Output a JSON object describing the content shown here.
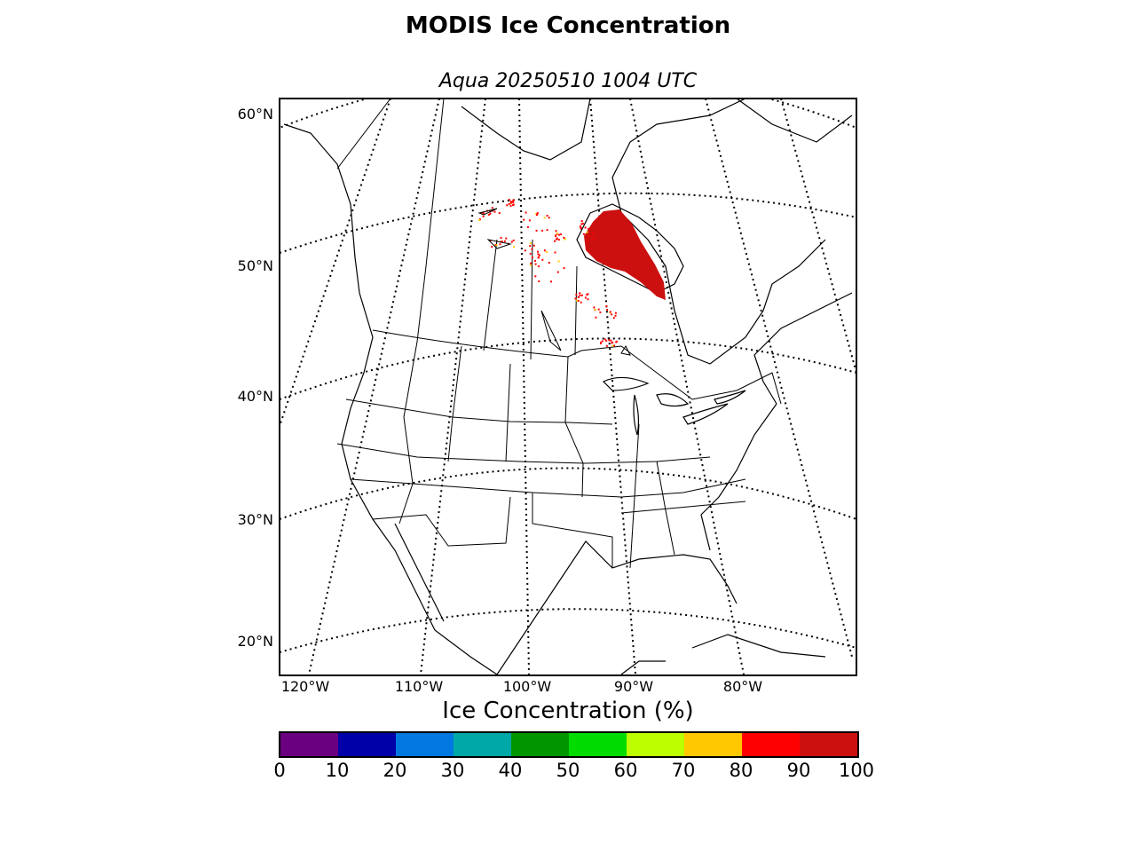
{
  "title": "MODIS Ice Concentration",
  "subtitle": "Aqua 20250510 1004 UTC",
  "lat_labels": [
    "60°N",
    "50°N",
    "40°N",
    "30°N",
    "20°N"
  ],
  "lon_labels": [
    "120°W",
    "110°W",
    "100°W",
    "90°W",
    "80°W"
  ],
  "colorbar": {
    "label": "Ice Concentration (%)",
    "ticks": [
      "0",
      "10",
      "20",
      "30",
      "40",
      "50",
      "60",
      "70",
      "80",
      "90",
      "100"
    ],
    "colors": [
      "#6a007f",
      "#0000a8",
      "#0078e0",
      "#00a8a8",
      "#009600",
      "#00dc00",
      "#bcff00",
      "#ffc800",
      "#ff0000",
      "#cc1010"
    ]
  },
  "ice_color": "#cc1010"
}
